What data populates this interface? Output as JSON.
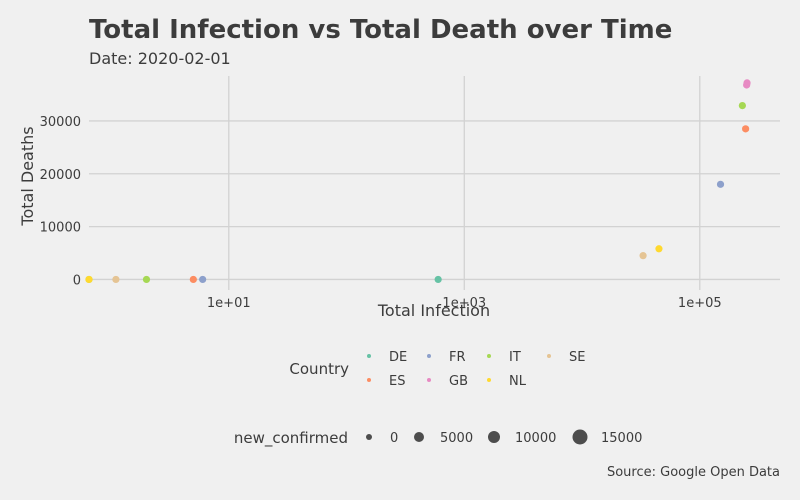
{
  "chart_data": {
    "type": "scatter",
    "title": "Total Infection vs Total Death over Time",
    "subtitle": "Date: 2020-02-01",
    "xlabel": "Total Infection",
    "ylabel": "Total Deaths",
    "x_scale": "log10",
    "xlim": [
      0.65,
      480000
    ],
    "ylim": [
      -2000,
      38500
    ],
    "x_ticks": [
      {
        "value": 10,
        "label": "1e+01"
      },
      {
        "value": 1000,
        "label": "1e+03"
      },
      {
        "value": 100000,
        "label": "1e+05"
      }
    ],
    "y_ticks": [
      {
        "value": 0,
        "label": "0"
      },
      {
        "value": 10000,
        "label": "10000"
      },
      {
        "value": 20000,
        "label": "20000"
      },
      {
        "value": 30000,
        "label": "30000"
      }
    ],
    "grid": true,
    "caption": "Source: Google Open Data",
    "legend": {
      "position": "bottom",
      "country_title": "Country",
      "countries": [
        {
          "name": "DE",
          "color": "#66c2a5"
        },
        {
          "name": "ES",
          "color": "#fc8d62"
        },
        {
          "name": "FR",
          "color": "#8da0cb"
        },
        {
          "name": "GB",
          "color": "#e78ac3"
        },
        {
          "name": "IT",
          "color": "#a6d854"
        },
        {
          "name": "NL",
          "color": "#ffd92f"
        },
        {
          "name": "SE",
          "color": "#e5c494"
        }
      ],
      "size_title": "new_confirmed",
      "size_values": [
        0,
        5000,
        10000,
        15000
      ]
    },
    "series": [
      {
        "name": "DE",
        "color": "#66c2a5",
        "points": [
          {
            "x": 600,
            "y": 0
          }
        ]
      },
      {
        "name": "ES",
        "color": "#fc8d62",
        "points": [
          {
            "x": 5,
            "y": 0
          },
          {
            "x": 245000,
            "y": 28500
          }
        ]
      },
      {
        "name": "FR",
        "color": "#8da0cb",
        "points": [
          {
            "x": 6,
            "y": 0
          },
          {
            "x": 150000,
            "y": 18000
          }
        ]
      },
      {
        "name": "GB",
        "color": "#e78ac3",
        "points": [
          {
            "x": 250000,
            "y": 36800
          },
          {
            "x": 252000,
            "y": 37200
          }
        ]
      },
      {
        "name": "IT",
        "color": "#a6d854",
        "points": [
          {
            "x": 0.65,
            "y": 0
          },
          {
            "x": 2,
            "y": 0
          },
          {
            "x": 230000,
            "y": 32900
          }
        ]
      },
      {
        "name": "NL",
        "color": "#ffd92f",
        "points": [
          {
            "x": 0.65,
            "y": 0
          },
          {
            "x": 45000,
            "y": 5800
          }
        ]
      },
      {
        "name": "SE",
        "color": "#e5c494",
        "points": [
          {
            "x": 1.1,
            "y": 0
          },
          {
            "x": 33000,
            "y": 4500
          }
        ]
      }
    ]
  }
}
